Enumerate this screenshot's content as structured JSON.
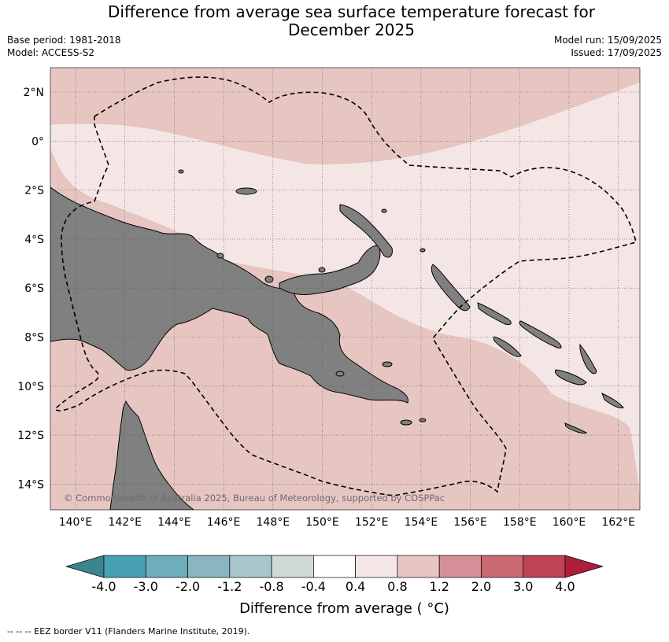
{
  "title": {
    "line1": "Difference from average sea surface temperature forecast for",
    "line2": "December 2025"
  },
  "meta": {
    "base_period": "Base period: 1981-2018",
    "model": "Model: ACCESS-S2",
    "model_run": "Model run: 15/09/2025",
    "issued": "Issued: 17/09/2025"
  },
  "map": {
    "lat_labels": [
      "2°N",
      "0°",
      "2°S",
      "4°S",
      "6°S",
      "8°S",
      "10°S",
      "12°S",
      "14°S"
    ],
    "lon_labels": [
      "140°E",
      "142°E",
      "144°E",
      "146°E",
      "148°E",
      "150°E",
      "152°E",
      "154°E",
      "156°E",
      "158°E",
      "160°E",
      "162°E"
    ],
    "copyright": "© Commonwealth of Australia 2025, Bureau of Meteorology, supported by COSPPac",
    "land_color": "#808080",
    "anomaly_colors": {
      "0.4 to 0.8": "#f4e6e4",
      "0.8 to 1.2": "#e7c6c2"
    }
  },
  "colorbar": {
    "ticks": [
      "-4.0",
      "-3.0",
      "-2.0",
      "-1.2",
      "-0.8",
      "-0.4",
      "0.4",
      "0.8",
      "1.2",
      "2.0",
      "3.0",
      "4.0"
    ],
    "colors": [
      "#3d8491",
      "#48a1b3",
      "#6eaebc",
      "#8ab6c0",
      "#a8c7cc",
      "#d0d8d8",
      "#ffffff",
      "#f4e6e4",
      "#e7c6c2",
      "#d68e97",
      "#c96a73",
      "#bd4455",
      "#ad1e3c"
    ],
    "label": "Difference from average ( °C)"
  },
  "footnote": "--  --  -- EEZ border V11 (Flanders Marine Institute, 2019)."
}
